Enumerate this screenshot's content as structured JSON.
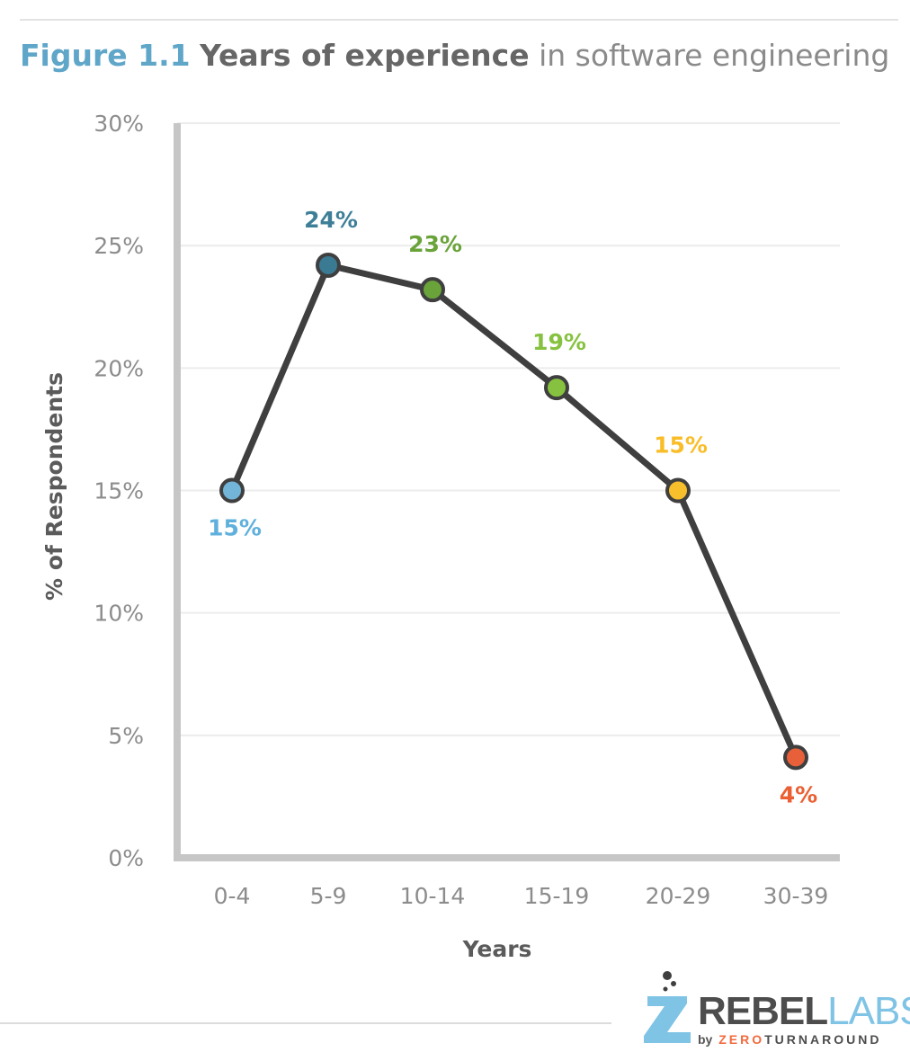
{
  "title": {
    "figure": "Figure 1.1",
    "main": "Years of experience",
    "sub": "in software engineering"
  },
  "chart_data": {
    "type": "line",
    "title": "Figure 1.1 Years of experience in software engineering",
    "xlabel": "Years",
    "ylabel": "% of Respondents",
    "categories": [
      "0-4",
      "5-9",
      "10-14",
      "15-19",
      "20-29",
      "30-39"
    ],
    "values": [
      15,
      24.2,
      23.2,
      19.2,
      15,
      4.1
    ],
    "data_labels": [
      "15%",
      "24%",
      "23%",
      "19%",
      "15%",
      "4%"
    ],
    "point_colors": [
      "#72b5d8",
      "#3a7b93",
      "#6aa33a",
      "#86c23f",
      "#f8bf2c",
      "#e8603a"
    ],
    "label_colors": [
      "#5fb0dc",
      "#3e7f98",
      "#6aa33a",
      "#86c23f",
      "#f9bd27",
      "#ea5f33"
    ],
    "label_positions": [
      "below",
      "above",
      "above",
      "above",
      "above",
      "below"
    ],
    "yticks": [
      "0%",
      "5%",
      "10%",
      "15%",
      "20%",
      "25%",
      "30%"
    ],
    "ylim": [
      0,
      30
    ],
    "grid": true,
    "line_color": "#3f3f3f"
  },
  "logo": {
    "rebel": "REBEL",
    "labs": "LABS",
    "by": "by",
    "zero": "ZERO",
    "turnaround": "TURNAROUND"
  }
}
